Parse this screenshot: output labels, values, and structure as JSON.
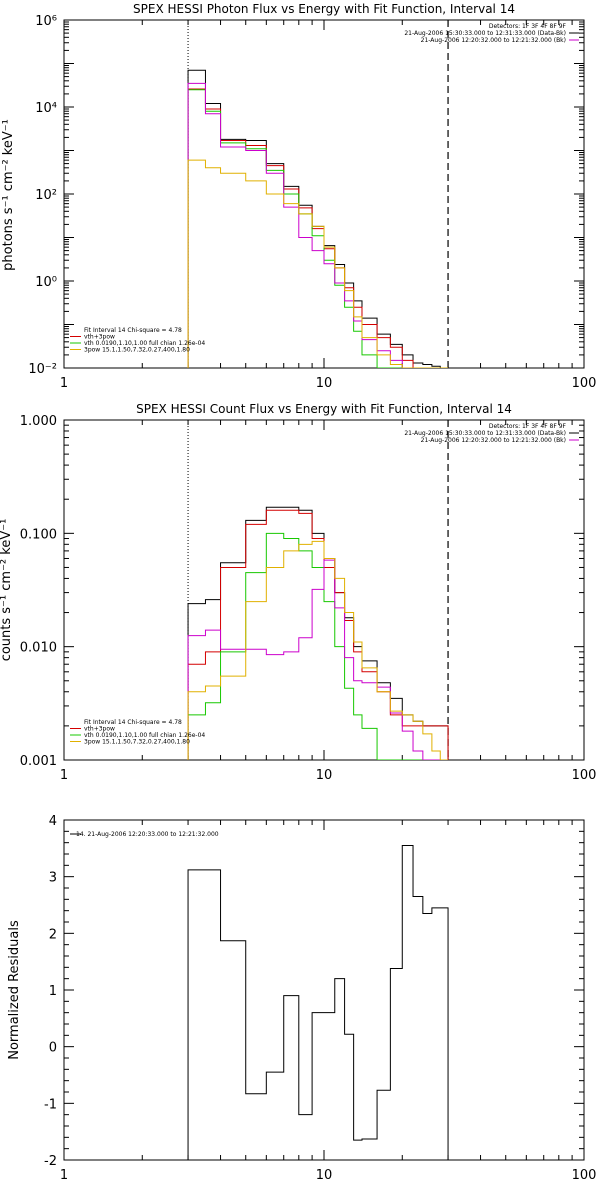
{
  "colors": {
    "black": "#000000",
    "red": "#d40000",
    "green": "#17c800",
    "yellow": "#e0b000",
    "magenta": "#cc00cc"
  },
  "chart_data": [
    {
      "id": "photon",
      "type": "line",
      "title": "SPEX HESSI Photon Flux vs Energy with Fit Function, Interval 14",
      "ylabel": "photons s⁻¹ cm⁻² keV⁻¹",
      "xscale": "log",
      "yscale": "log",
      "xlim": [
        1,
        100
      ],
      "ylim": [
        0.01,
        1000000
      ],
      "xticks": [
        "1",
        "10",
        "100"
      ],
      "yticks": [
        "10⁻²",
        "10⁰",
        "10²",
        "10⁴",
        "10⁶"
      ],
      "edges": [
        3,
        3.5,
        4,
        5,
        6,
        7,
        8,
        9,
        10,
        11,
        12,
        13,
        14,
        16,
        18,
        20,
        22,
        24,
        26,
        28,
        30
      ],
      "vlines": {
        "dotted": 3,
        "dashed": 30
      },
      "header": [
        "Detectors: 1F 3F 4F 8F 9F",
        "21-Aug-2006 15:30:33.000 to 12:31:33.000 (Data-Bk)",
        "21-Aug-2006 12:20:32.000 to 12:21:32.000 (Bk)"
      ],
      "header_colors": [
        "",
        "black",
        "magenta"
      ],
      "fit_legend": {
        "lines": [
          "Fit Interval 14   Chi-square = 4.78",
          "vth+3pow",
          "vth 0.0190,1.10,1.00  full chian 1.26e-04",
          "3pow 15.1,1.50,7.32,0.27,400,1.80"
        ],
        "colors": [
          "",
          "red",
          "green",
          "yellow"
        ]
      },
      "series": [
        {
          "color": "black",
          "values": [
            70000,
            12000,
            1800,
            1700,
            500,
            150,
            55,
            18,
            6.5,
            2.4,
            0.9,
            0.35,
            0.14,
            0.06,
            0.035,
            0.02,
            0.013,
            0.012,
            0.011,
            0.01
          ]
        },
        {
          "color": "red",
          "values": [
            26000,
            9000,
            1700,
            1300,
            450,
            130,
            48,
            16,
            5.5,
            2.0,
            0.7,
            0.25,
            0.1,
            0.05,
            0.03,
            0.015,
            0.01,
            0.01,
            0.01,
            0.01
          ]
        },
        {
          "color": "green",
          "values": [
            25000,
            8000,
            1500,
            1100,
            350,
            100,
            35,
            11,
            3.0,
            0.8,
            0.25,
            0.07,
            0.02,
            0.01,
            0.01,
            0.01,
            0.01,
            0.01,
            0.01,
            0.01
          ]
        },
        {
          "color": "magenta",
          "values": [
            35000,
            7000,
            1200,
            1000,
            300,
            50,
            10,
            5,
            2.5,
            0.9,
            0.35,
            0.12,
            0.045,
            0.025,
            0.015,
            0.01,
            0.01,
            0.01,
            0.01,
            0.01
          ]
        },
        {
          "color": "yellow",
          "values": [
            600,
            400,
            300,
            200,
            100,
            60,
            35,
            18,
            6,
            2,
            0.6,
            0.15,
            0.05,
            0.02,
            0.012,
            0.01,
            0.01,
            0.01,
            0.01,
            0.01
          ]
        }
      ]
    },
    {
      "id": "count",
      "type": "line",
      "title": "SPEX HESSI Count Flux vs Energy with Fit Function, Interval 14",
      "ylabel": "counts s⁻¹ cm⁻² keV⁻¹",
      "xscale": "log",
      "yscale": "log",
      "xlim": [
        1,
        100
      ],
      "ylim": [
        0.001,
        1.0
      ],
      "xticks": [
        "1",
        "10",
        "100"
      ],
      "yticks": [
        "0.001",
        "0.010",
        "0.100",
        "1.000"
      ],
      "edges": [
        3,
        3.5,
        4,
        5,
        6,
        7,
        8,
        9,
        10,
        11,
        12,
        13,
        14,
        16,
        18,
        20,
        22,
        24,
        26,
        28,
        30
      ],
      "vlines": {
        "dotted": 3,
        "dashed": 30
      },
      "header": [
        "Detectors: 1F 3F 4F 8F 9F",
        "21-Aug-2006 15:30:33.000 to 12:31:33.000 (Data-Bk)",
        "21-Aug-2006 12:20:32.000 to 12:21:32.000 (Bk)"
      ],
      "header_colors": [
        "",
        "black",
        "magenta"
      ],
      "fit_legend": {
        "lines": [
          "Fit Interval 14   Chi-square = 4.78",
          "vth+3pow",
          "vth 0.0190,1.10,1.00  full chian 1.26e-04",
          "3pow 15.1,1.50,7.32,0.27,400,1.80"
        ],
        "colors": [
          "",
          "red",
          "green",
          "yellow"
        ]
      },
      "series": [
        {
          "color": "black",
          "values": [
            0.024,
            0.026,
            0.055,
            0.13,
            0.17,
            0.17,
            0.16,
            0.1,
            0.06,
            0.03,
            0.018,
            0.01,
            0.0075,
            0.0048,
            0.0035,
            0.0025,
            0.0022,
            0.002,
            0.002,
            0.002
          ]
        },
        {
          "color": "red",
          "values": [
            0.007,
            0.009,
            0.05,
            0.12,
            0.16,
            0.16,
            0.15,
            0.09,
            0.05,
            0.03,
            0.017,
            0.009,
            0.006,
            0.004,
            0.0025,
            0.002,
            0.002,
            0.002,
            0.002,
            0.002
          ]
        },
        {
          "color": "green",
          "values": [
            0.0025,
            0.0032,
            0.009,
            0.045,
            0.1,
            0.09,
            0.07,
            0.05,
            0.025,
            0.01,
            0.0043,
            0.0025,
            0.0019,
            0.001,
            0.001,
            0.001,
            0.001,
            0.001,
            0.001,
            0.001
          ]
        },
        {
          "color": "magenta",
          "values": [
            0.0125,
            0.014,
            0.0095,
            0.0095,
            0.0085,
            0.009,
            0.012,
            0.032,
            0.058,
            0.022,
            0.008,
            0.005,
            0.0048,
            0.0044,
            0.0026,
            0.0018,
            0.0012,
            0.001,
            0.001,
            0.001
          ]
        },
        {
          "color": "yellow",
          "values": [
            0.004,
            0.0045,
            0.0055,
            0.025,
            0.05,
            0.07,
            0.08,
            0.085,
            0.06,
            0.04,
            0.02,
            0.011,
            0.0065,
            0.004,
            0.0027,
            0.0025,
            0.0022,
            0.0017,
            0.0012,
            0.001
          ]
        }
      ]
    },
    {
      "id": "residuals",
      "type": "line",
      "title": "",
      "ylabel": "Normalized Residuals",
      "xscale": "log",
      "yscale": "linear",
      "xlim": [
        1,
        100
      ],
      "ylim": [
        -2,
        4
      ],
      "xticks": [
        "1",
        "10",
        "100"
      ],
      "yticks": [
        "-2",
        "-1",
        "0",
        "1",
        "2",
        "3",
        "4"
      ],
      "edges": [
        3,
        3.5,
        4,
        5,
        6,
        7,
        8,
        9,
        10,
        11,
        12,
        13,
        14,
        16,
        18,
        20,
        22,
        24,
        26,
        28,
        30
      ],
      "legend": "14. 21-Aug-2006 12:20:33.000 to 12:21:32.000",
      "series": [
        {
          "color": "black",
          "values": [
            3.12,
            3.12,
            1.87,
            -0.83,
            -0.45,
            0.9,
            -1.2,
            0.6,
            0.6,
            1.2,
            0.22,
            -1.65,
            -1.63,
            -0.77,
            1.38,
            3.55,
            2.65,
            2.35,
            2.45,
            2.45
          ]
        }
      ]
    }
  ]
}
